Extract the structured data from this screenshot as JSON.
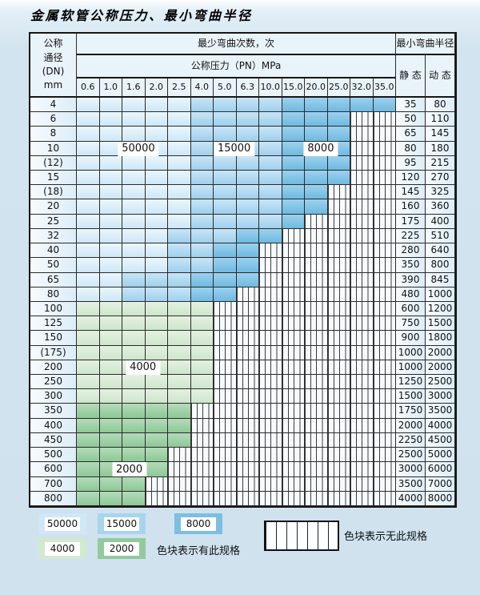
{
  "title": "金属软管公称压力、最小弯曲半径",
  "colors": {
    "c50000": "#cfe7f6",
    "c15000": "#a8d4ee",
    "c8000": "#7bbfe3",
    "c4000": "#d2e9d0",
    "c2000": "#92cb9b",
    "grid": "#2a2a2a"
  },
  "table": {
    "corner_lines": [
      "公称",
      "通径",
      "(DN)",
      "mm"
    ],
    "bend_times_header": "最少弯曲次数，次",
    "pressure_header": "公称压力（PN）MPa",
    "pressures": [
      "0.6",
      "1.0",
      "1.6",
      "2.0",
      "2.5",
      "4.0",
      "5.0",
      "6.3",
      "10.0",
      "15.0",
      "20.0",
      "25.0",
      "32.0",
      "35.0"
    ],
    "radius_header": "最小弯曲半径",
    "static_header": "静 态",
    "dynamic_header": "动 态",
    "rows": [
      {
        "dn": "4",
        "cells": "aaaaabbbbccccc",
        "static": "35",
        "dynamic": "80"
      },
      {
        "dn": "6",
        "cells": "aaaaabbbbcccxx",
        "static": "50",
        "dynamic": "110"
      },
      {
        "dn": "8",
        "cells": "aaaaabbbbcccxx",
        "static": "65",
        "dynamic": "145"
      },
      {
        "dn": "10",
        "cells": "aaaaabbbbcccxx",
        "static": "80",
        "dynamic": "180"
      },
      {
        "dn": "(12)",
        "cells": "aaaaabbbbcccxx",
        "static": "95",
        "dynamic": "215"
      },
      {
        "dn": "15",
        "cells": "aaaaabbbbcccxx",
        "static": "120",
        "dynamic": "270"
      },
      {
        "dn": "(18)",
        "cells": "aaaaabbbbccxxx",
        "static": "145",
        "dynamic": "325"
      },
      {
        "dn": "20",
        "cells": "aaaaabbbbccxxx",
        "static": "160",
        "dynamic": "360"
      },
      {
        "dn": "25",
        "cells": "aaaaabbbbcxxxx",
        "static": "175",
        "dynamic": "400"
      },
      {
        "dn": "32",
        "cells": "aaaabbbccxxxxx",
        "static": "225",
        "dynamic": "510"
      },
      {
        "dn": "40",
        "cells": "aaaabbccxxxxxx",
        "static": "280",
        "dynamic": "640"
      },
      {
        "dn": "50",
        "cells": "aaaabbccxxxxxx",
        "static": "350",
        "dynamic": "800"
      },
      {
        "dn": "65",
        "cells": "aabbbcccxxxxxx",
        "static": "390",
        "dynamic": "845"
      },
      {
        "dn": "80",
        "cells": "aabbbccxxxxxxx",
        "static": "480",
        "dynamic": "1000"
      },
      {
        "dn": "100",
        "cells": "ddddddxxxxxxxx",
        "static": "600",
        "dynamic": "1200"
      },
      {
        "dn": "125",
        "cells": "ddddddxxxxxxxx",
        "static": "750",
        "dynamic": "1500"
      },
      {
        "dn": "150",
        "cells": "ddddddxxxxxxxx",
        "static": "900",
        "dynamic": "1800"
      },
      {
        "dn": "(175)",
        "cells": "ddddddxxxxxxxx",
        "static": "1000",
        "dynamic": "2000"
      },
      {
        "dn": "200",
        "cells": "ddddddxxxxxxxx",
        "static": "1000",
        "dynamic": "2000"
      },
      {
        "dn": "250",
        "cells": "ddddddxxxxxxxx",
        "static": "1250",
        "dynamic": "2500"
      },
      {
        "dn": "300",
        "cells": "ddddddxxxxxxxx",
        "static": "1500",
        "dynamic": "3000"
      },
      {
        "dn": "350",
        "cells": "eeeeexxxxxxxxx",
        "static": "1750",
        "dynamic": "3500"
      },
      {
        "dn": "400",
        "cells": "eeeeexxxxxxxxx",
        "static": "2000",
        "dynamic": "4000"
      },
      {
        "dn": "450",
        "cells": "eeeeexxxxxxxxx",
        "static": "2250",
        "dynamic": "4500"
      },
      {
        "dn": "500",
        "cells": "eeeexxxxxxxxxx",
        "static": "2500",
        "dynamic": "5000"
      },
      {
        "dn": "600",
        "cells": "eeeexxxxxxxxxx",
        "static": "3000",
        "dynamic": "6000"
      },
      {
        "dn": "700",
        "cells": "eeexxxxxxxxxxx",
        "static": "3500",
        "dynamic": "7000"
      },
      {
        "dn": "800",
        "cells": "eeexxxxxxxxxxx",
        "static": "4000",
        "dynamic": "8000"
      }
    ],
    "overlay_labels": [
      {
        "text": "50000",
        "row": 3,
        "col": 2.7
      },
      {
        "text": "15000",
        "row": 3,
        "col": 6.9
      },
      {
        "text": "8000",
        "row": 3,
        "col": 10.7
      },
      {
        "text": "4000",
        "row": 18,
        "col": 2.9
      },
      {
        "text": "2000",
        "row": 25,
        "col": 2.3
      }
    ]
  },
  "legend": {
    "spec_items": [
      {
        "label": "50000",
        "color_key": "c50000"
      },
      {
        "label": "15000",
        "color_key": "c15000"
      },
      {
        "label": "8000",
        "color_key": "c8000"
      },
      {
        "label": "4000",
        "color_key": "c4000"
      },
      {
        "label": "2000",
        "color_key": "c2000"
      }
    ],
    "spec_note": "色块表示有此规格",
    "nospec_note": "色块表示无此规格"
  }
}
